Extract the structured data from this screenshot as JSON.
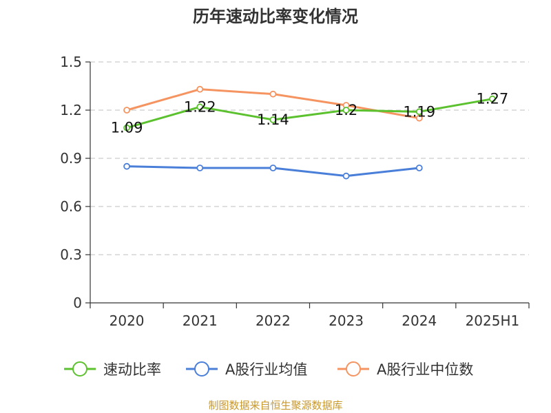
{
  "chart_data": {
    "type": "line",
    "title": "历年速动比率变化情况",
    "categories": [
      "2020",
      "2021",
      "2022",
      "2023",
      "2024",
      "2025H1"
    ],
    "yticks": [
      "0",
      "0.3",
      "0.6",
      "0.9",
      "1.2",
      "1.5"
    ],
    "ylim": [
      0,
      1.5
    ],
    "grid": true,
    "legend_position": "bottom",
    "series": [
      {
        "name": "速动比率",
        "color": "#5cc12e",
        "values": [
          1.09,
          1.22,
          1.14,
          1.2,
          1.19,
          1.27
        ],
        "labels": [
          "1.09",
          "1.22",
          "1.14",
          "1.2",
          "1.19",
          "1.27"
        ]
      },
      {
        "name": "A股行业均值",
        "color": "#4a7fd9",
        "values": [
          0.85,
          0.84,
          0.84,
          0.79,
          0.84,
          null
        ]
      },
      {
        "name": "A股行业中位数",
        "color": "#f59460",
        "values": [
          1.2,
          1.33,
          1.3,
          1.23,
          1.15,
          null
        ]
      }
    ]
  },
  "footer": {
    "source": "制图数据来自恒生聚源数据库"
  }
}
